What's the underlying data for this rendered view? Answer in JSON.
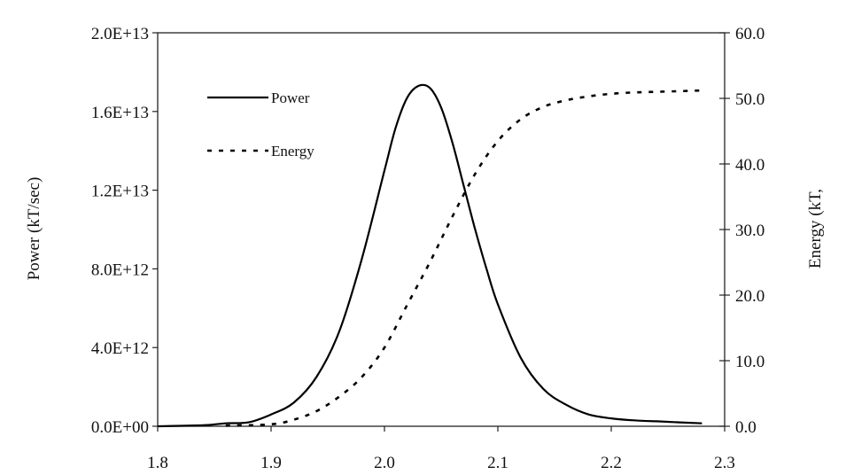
{
  "chart_data": {
    "type": "line",
    "x_axis": {
      "min": 1.8,
      "max": 2.3,
      "ticks": [
        1.8,
        1.9,
        2.0,
        2.1,
        2.2,
        2.3
      ],
      "tick_labels": [
        "1.8",
        "1.9",
        "2.0",
        "2.1",
        "2.2",
        "2.3"
      ]
    },
    "y_left": {
      "label": "Power (kT/sec)",
      "min": 0,
      "max": 20000000000000,
      "ticks": [
        0,
        4000000000000,
        8000000000000,
        12000000000000,
        16000000000000,
        20000000000000
      ],
      "tick_labels": [
        "0.0E+00",
        "4.0E+12",
        "8.0E+12",
        "1.2E+13",
        "1.6E+13",
        "2.0E+13"
      ]
    },
    "y_right": {
      "label": "Energy (kT,",
      "min": 0,
      "max": 60,
      "ticks": [
        0,
        10,
        20,
        30,
        40,
        50,
        60
      ],
      "tick_labels": [
        "0.0",
        "10.0",
        "20.0",
        "30.0",
        "40.0",
        "50.0",
        "60.0"
      ]
    },
    "legend_position": "top-left",
    "grid": false,
    "series": [
      {
        "name": "Power",
        "axis": "left",
        "style": "solid",
        "color": "#000000",
        "x": [
          1.8,
          1.84,
          1.86,
          1.88,
          1.9,
          1.92,
          1.94,
          1.96,
          1.98,
          2.0,
          2.01,
          2.02,
          2.03,
          2.04,
          2.05,
          2.06,
          2.07,
          2.08,
          2.09,
          2.1,
          2.12,
          2.14,
          2.16,
          2.18,
          2.2,
          2.22,
          2.24,
          2.26,
          2.28
        ],
        "y": [
          0,
          50000000000,
          150000000000,
          200000000000,
          600000000000,
          1200000000000,
          2500000000000,
          4800000000000,
          8500000000000,
          13000000000000,
          15200000000000,
          16700000000000,
          17300000000000,
          17200000000000,
          16200000000000,
          14400000000000,
          12200000000000,
          10000000000000,
          8000000000000,
          6200000000000,
          3500000000000,
          1900000000000,
          1100000000000,
          600000000000,
          400000000000,
          300000000000,
          250000000000,
          200000000000,
          150000000000
        ]
      },
      {
        "name": "Energy",
        "axis": "right",
        "style": "dashed",
        "color": "#000000",
        "x": [
          1.86,
          1.9,
          1.92,
          1.94,
          1.96,
          1.98,
          2.0,
          2.02,
          2.04,
          2.06,
          2.08,
          2.1,
          2.12,
          2.14,
          2.16,
          2.18,
          2.2,
          2.22,
          2.24,
          2.26,
          2.28
        ],
        "y": [
          0.1,
          0.3,
          1.0,
          2.3,
          4.5,
          7.5,
          12.0,
          18.5,
          25.0,
          32.0,
          38.5,
          43.5,
          46.8,
          48.7,
          49.7,
          50.3,
          50.7,
          50.9,
          51.0,
          51.1,
          51.2
        ]
      }
    ]
  }
}
